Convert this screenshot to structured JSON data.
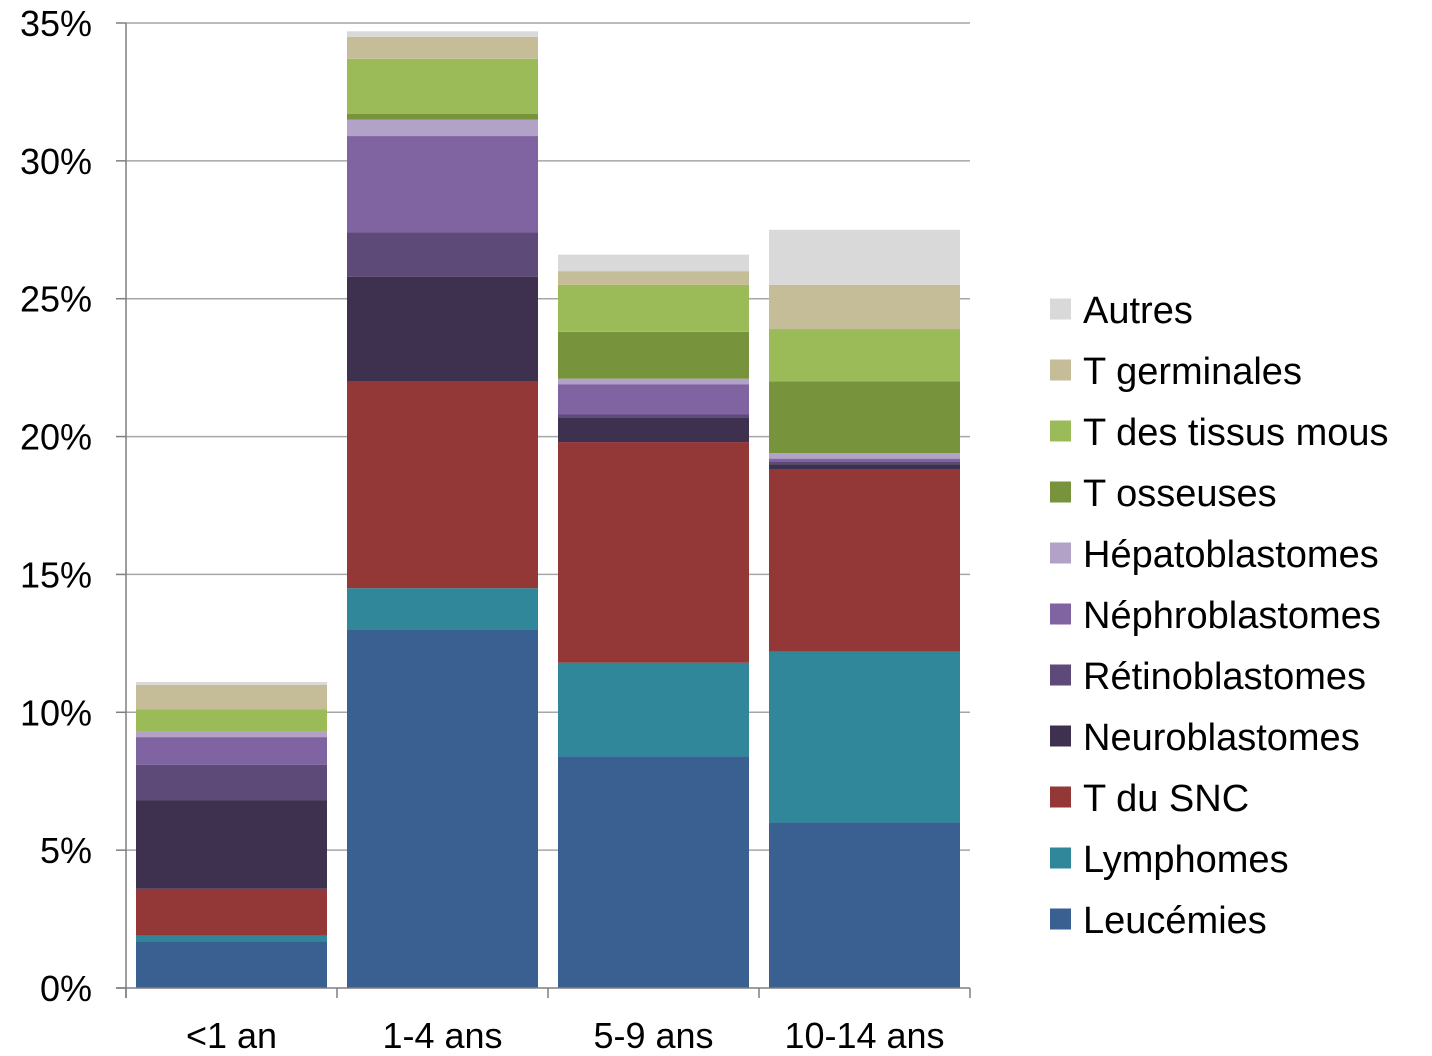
{
  "chart_data": {
    "type": "bar",
    "stacked": true,
    "title": "",
    "xlabel": "",
    "ylabel": "",
    "ylim": [
      0,
      35
    ],
    "y_unit": "%",
    "y_ticks": [
      "0%",
      "5%",
      "10%",
      "15%",
      "20%",
      "25%",
      "30%",
      "35%"
    ],
    "y_tick_values": [
      0,
      5,
      10,
      15,
      20,
      25,
      30,
      35
    ],
    "grid": "horizontal",
    "legend_position": "right",
    "categories": [
      "<1 an",
      "1-4 ans",
      "5-9 ans",
      "10-14 ans"
    ],
    "series": [
      {
        "name": "Leucémies",
        "color": "#3A5F91",
        "values": [
          1.7,
          13.0,
          8.4,
          6.0
        ]
      },
      {
        "name": "Lymphomes",
        "color": "#2F8799",
        "values": [
          0.2,
          1.5,
          3.4,
          6.2
        ]
      },
      {
        "name": "T du SNC",
        "color": "#943737",
        "values": [
          1.7,
          7.5,
          8.0,
          6.6
        ]
      },
      {
        "name": "Neuroblastomes",
        "color": "#3E3150",
        "values": [
          3.2,
          3.8,
          0.9,
          0.2
        ]
      },
      {
        "name": "Rétinoblastomes",
        "color": "#5E4A78",
        "values": [
          1.3,
          1.6,
          0.1,
          0.1
        ]
      },
      {
        "name": "Néphroblastomes",
        "color": "#8064A2",
        "values": [
          1.0,
          3.5,
          1.1,
          0.1
        ]
      },
      {
        "name": "Hépatoblastomes",
        "color": "#B3A2C7",
        "values": [
          0.2,
          0.6,
          0.2,
          0.2
        ]
      },
      {
        "name": "T osseuses",
        "color": "#77933C",
        "values": [
          0.0,
          0.2,
          1.7,
          2.6
        ]
      },
      {
        "name": "T des tissus mous",
        "color": "#9BBB59",
        "values": [
          0.8,
          2.0,
          1.7,
          1.9
        ]
      },
      {
        "name": "T germinales",
        "color": "#C4BD97",
        "values": [
          0.9,
          0.8,
          0.5,
          1.6
        ]
      },
      {
        "name": "Autres",
        "color": "#D9D9D9",
        "values": [
          0.1,
          0.2,
          0.6,
          2.0
        ]
      }
    ]
  }
}
